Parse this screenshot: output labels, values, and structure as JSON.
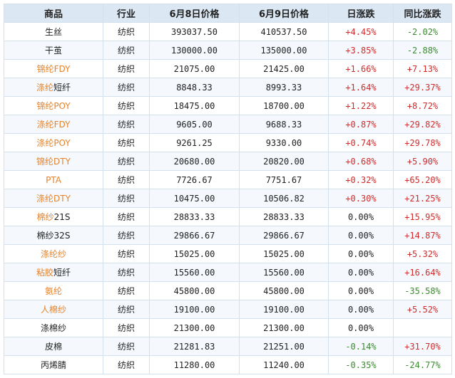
{
  "colors": {
    "header_bg": "#dbe8f4",
    "border": "#d3e1ee",
    "link_orange": "#e6822a",
    "up_red": "#d22a2a",
    "down_green": "#3b8b2f"
  },
  "columns": [
    "商品",
    "行业",
    "6月8日价格",
    "6月9日价格",
    "日涨跌",
    "同比涨跌"
  ],
  "rows": [
    {
      "name": "生丝",
      "name_parts": [
        {
          "text": "生丝",
          "link": false
        }
      ],
      "industry": "纺织",
      "price_0608": "393037.50",
      "price_0609": "410537.50",
      "daily_change": "+4.45%",
      "daily_dir": "up",
      "yoy_change": "-2.02%",
      "yoy_dir": "down"
    },
    {
      "name": "干茧",
      "name_parts": [
        {
          "text": "干茧",
          "link": false
        }
      ],
      "industry": "纺织",
      "price_0608": "130000.00",
      "price_0609": "135000.00",
      "daily_change": "+3.85%",
      "daily_dir": "up",
      "yoy_change": "-2.88%",
      "yoy_dir": "down"
    },
    {
      "name": "锦纶FDY",
      "name_parts": [
        {
          "text": "锦纶FDY",
          "link": true
        }
      ],
      "industry": "纺织",
      "price_0608": "21075.00",
      "price_0609": "21425.00",
      "daily_change": "+1.66%",
      "daily_dir": "up",
      "yoy_change": "+7.13%",
      "yoy_dir": "up"
    },
    {
      "name": "涤纶短纤",
      "name_parts": [
        {
          "text": "涤纶",
          "link": true
        },
        {
          "text": "短纤",
          "link": false
        }
      ],
      "industry": "纺织",
      "price_0608": "8848.33",
      "price_0609": "8993.33",
      "daily_change": "+1.64%",
      "daily_dir": "up",
      "yoy_change": "+29.37%",
      "yoy_dir": "up"
    },
    {
      "name": "锦纶POY",
      "name_parts": [
        {
          "text": "锦纶POY",
          "link": true
        }
      ],
      "industry": "纺织",
      "price_0608": "18475.00",
      "price_0609": "18700.00",
      "daily_change": "+1.22%",
      "daily_dir": "up",
      "yoy_change": "+8.72%",
      "yoy_dir": "up"
    },
    {
      "name": "涤纶FDY",
      "name_parts": [
        {
          "text": "涤纶FDY",
          "link": true
        }
      ],
      "industry": "纺织",
      "price_0608": "9605.00",
      "price_0609": "9688.33",
      "daily_change": "+0.87%",
      "daily_dir": "up",
      "yoy_change": "+29.82%",
      "yoy_dir": "up"
    },
    {
      "name": "涤纶POY",
      "name_parts": [
        {
          "text": "涤纶POY",
          "link": true
        }
      ],
      "industry": "纺织",
      "price_0608": "9261.25",
      "price_0609": "9330.00",
      "daily_change": "+0.74%",
      "daily_dir": "up",
      "yoy_change": "+29.78%",
      "yoy_dir": "up"
    },
    {
      "name": "锦纶DTY",
      "name_parts": [
        {
          "text": "锦纶DTY",
          "link": true
        }
      ],
      "industry": "纺织",
      "price_0608": "20680.00",
      "price_0609": "20820.00",
      "daily_change": "+0.68%",
      "daily_dir": "up",
      "yoy_change": "+5.90%",
      "yoy_dir": "up"
    },
    {
      "name": "PTA",
      "name_parts": [
        {
          "text": "PTA",
          "link": true
        }
      ],
      "industry": "纺织",
      "price_0608": "7726.67",
      "price_0609": "7751.67",
      "daily_change": "+0.32%",
      "daily_dir": "up",
      "yoy_change": "+65.20%",
      "yoy_dir": "up"
    },
    {
      "name": "涤纶DTY",
      "name_parts": [
        {
          "text": "涤纶DTY",
          "link": true
        }
      ],
      "industry": "纺织",
      "price_0608": "10475.00",
      "price_0609": "10506.82",
      "daily_change": "+0.30%",
      "daily_dir": "up",
      "yoy_change": "+21.25%",
      "yoy_dir": "up"
    },
    {
      "name": "棉纱21S",
      "name_parts": [
        {
          "text": "棉纱",
          "link": true
        },
        {
          "text": "21S",
          "link": false
        }
      ],
      "industry": "纺织",
      "price_0608": "28833.33",
      "price_0609": "28833.33",
      "daily_change": "0.00%",
      "daily_dir": "flat",
      "yoy_change": "+15.95%",
      "yoy_dir": "up"
    },
    {
      "name": "棉纱32S",
      "name_parts": [
        {
          "text": "棉纱32S",
          "link": false
        }
      ],
      "industry": "纺织",
      "price_0608": "29866.67",
      "price_0609": "29866.67",
      "daily_change": "0.00%",
      "daily_dir": "flat",
      "yoy_change": "+14.87%",
      "yoy_dir": "up"
    },
    {
      "name": "涤纶纱",
      "name_parts": [
        {
          "text": "涤纶纱",
          "link": true
        }
      ],
      "industry": "纺织",
      "price_0608": "15025.00",
      "price_0609": "15025.00",
      "daily_change": "0.00%",
      "daily_dir": "flat",
      "yoy_change": "+5.32%",
      "yoy_dir": "up"
    },
    {
      "name": "粘胶短纤",
      "name_parts": [
        {
          "text": "粘胶",
          "link": true
        },
        {
          "text": "短纤",
          "link": false
        }
      ],
      "industry": "纺织",
      "price_0608": "15560.00",
      "price_0609": "15560.00",
      "daily_change": "0.00%",
      "daily_dir": "flat",
      "yoy_change": "+16.64%",
      "yoy_dir": "up"
    },
    {
      "name": "氨纶",
      "name_parts": [
        {
          "text": "氨纶",
          "link": true
        }
      ],
      "industry": "纺织",
      "price_0608": "45800.00",
      "price_0609": "45800.00",
      "daily_change": "0.00%",
      "daily_dir": "flat",
      "yoy_change": "-35.58%",
      "yoy_dir": "down"
    },
    {
      "name": "人棉纱",
      "name_parts": [
        {
          "text": "人棉纱",
          "link": true
        }
      ],
      "industry": "纺织",
      "price_0608": "19100.00",
      "price_0609": "19100.00",
      "daily_change": "0.00%",
      "daily_dir": "flat",
      "yoy_change": "+5.52%",
      "yoy_dir": "up"
    },
    {
      "name": "涤棉纱",
      "name_parts": [
        {
          "text": "涤棉纱",
          "link": false
        }
      ],
      "industry": "纺织",
      "price_0608": "21300.00",
      "price_0609": "21300.00",
      "daily_change": "0.00%",
      "daily_dir": "flat",
      "yoy_change": "",
      "yoy_dir": "flat"
    },
    {
      "name": "皮棉",
      "name_parts": [
        {
          "text": "皮棉",
          "link": false
        }
      ],
      "industry": "纺织",
      "price_0608": "21281.83",
      "price_0609": "21251.00",
      "daily_change": "-0.14%",
      "daily_dir": "down",
      "yoy_change": "+31.70%",
      "yoy_dir": "up"
    },
    {
      "name": "丙烯腈",
      "name_parts": [
        {
          "text": "丙烯腈",
          "link": false
        }
      ],
      "industry": "纺织",
      "price_0608": "11280.00",
      "price_0609": "11240.00",
      "daily_change": "-0.35%",
      "daily_dir": "down",
      "yoy_change": "-24.77%",
      "yoy_dir": "down"
    }
  ]
}
